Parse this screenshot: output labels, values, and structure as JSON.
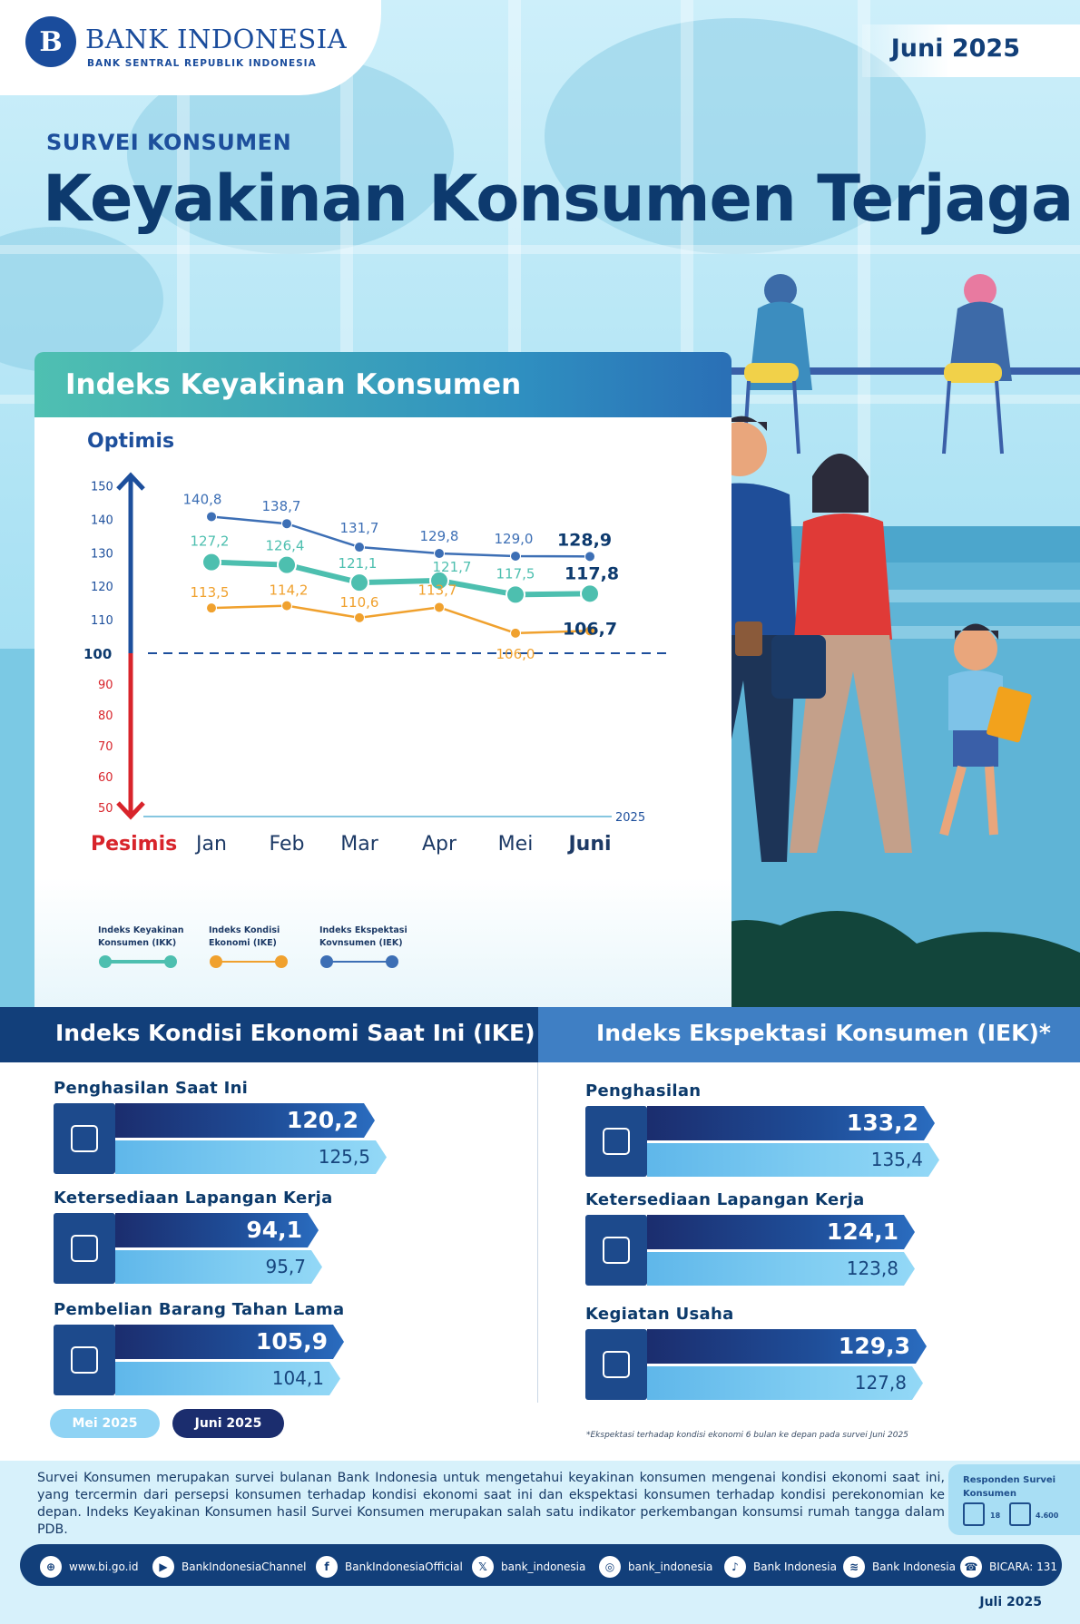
{
  "header": {
    "logo_emblem": "B",
    "logo_name": "BANK INDONESIA",
    "logo_subtitle": "BANK SENTRAL REPUBLIK INDONESIA",
    "period": "Juni 2025",
    "eyebrow": "SURVEI KONSUMEN",
    "title": "Keyakinan Konsumen Terjaga"
  },
  "chart_card": {
    "title": "Indeks Keyakinan Konsumen",
    "label_top": "Optimis",
    "label_bottom": "Pesimis",
    "year_label": "2025",
    "baseline_label": "100"
  },
  "chart_data": {
    "type": "line",
    "title": "Indeks Keyakinan Konsumen",
    "categories": [
      "Jan",
      "Feb",
      "Mar",
      "Apr",
      "Mei",
      "Juni"
    ],
    "y_ticks_optimis": [
      150,
      140,
      130,
      120,
      110
    ],
    "y_ticks_pesimis": [
      90,
      80,
      70,
      60,
      50
    ],
    "baseline": 100,
    "series": [
      {
        "name": "Indeks Ekspektasi Kovnsumen (IEK)",
        "legend_line1": "Indeks Ekspektasi",
        "legend_line2": "Kovnsumen (IEK)",
        "color": "#3d6fb5",
        "values": [
          140.8,
          138.7,
          131.7,
          129.8,
          129.0,
          128.9
        ],
        "labels": [
          "140,8",
          "138,7",
          "131,7",
          "129,8",
          "129,0",
          "128,9"
        ]
      },
      {
        "name": "Indeks Keyakinan Konsumen (IKK)",
        "legend_line1": "Indeks Keyakinan",
        "legend_line2": "Konsumen (IKK)",
        "color": "#4dbfaf",
        "values": [
          127.2,
          126.4,
          121.1,
          121.7,
          117.5,
          117.8
        ],
        "labels": [
          "127,2",
          "126,4",
          "121,1",
          "121,7",
          "117,5",
          "117,8"
        ]
      },
      {
        "name": "Indeks Kondisi Ekonomi (IKE)",
        "legend_line1": "Indeks Kondisi",
        "legend_line2": "Ekonomi (IKE)",
        "color": "#f0a12e",
        "values": [
          113.5,
          114.2,
          110.6,
          113.7,
          106.0,
          106.7
        ],
        "labels": [
          "113,5",
          "114,2",
          "110,6",
          "113,7",
          "106,0",
          "106,7"
        ]
      }
    ],
    "legend_order": [
      1,
      2,
      0
    ]
  },
  "panels": {
    "ike_title": "Indeks Kondisi Ekonomi Saat Ini (IKE)",
    "iek_title": "Indeks Ekspektasi Konsumen (IEK)*",
    "ike": [
      {
        "label": "Penghasilan Saat Ini",
        "icon": "money-hand-icon",
        "juni": 120.2,
        "juni_label": "120,2",
        "mei": 125.5,
        "mei_label": "125,5"
      },
      {
        "label": "Ketersediaan Lapangan Kerja",
        "icon": "job-document-icon",
        "juni": 94.1,
        "juni_label": "94,1",
        "mei": 95.7,
        "mei_label": "95,7"
      },
      {
        "label": "Pembelian Barang Tahan Lama",
        "icon": "refrigerator-icon",
        "juni": 105.9,
        "juni_label": "105,9",
        "mei": 104.1,
        "mei_label": "104,1"
      }
    ],
    "iek": [
      {
        "label": "Penghasilan",
        "icon": "money-bag-hand-icon",
        "juni": 133.2,
        "juni_label": "133,2",
        "mei": 135.4,
        "mei_label": "135,4"
      },
      {
        "label": "Ketersediaan Lapangan Kerja",
        "icon": "briefcase-hands-icon",
        "juni": 124.1,
        "juni_label": "124,1",
        "mei": 123.8,
        "mei_label": "123,8"
      },
      {
        "label": "Kegiatan Usaha",
        "icon": "shop-icon",
        "juni": 129.3,
        "juni_label": "129,3",
        "mei": 127.8,
        "mei_label": "127,8"
      }
    ],
    "legend_mei": "Mei 2025",
    "legend_juni": "Juni 2025",
    "colors": {
      "juni": "#1b2d6e",
      "mei": "#8fd3f4"
    },
    "footnote": "*Ekspektasi terhadap kondisi ekonomi 6 bulan ke depan pada survei Juni 2025"
  },
  "footer": {
    "description": "Survei Konsumen merupakan survei bulanan Bank Indonesia untuk mengetahui keyakinan konsumen mengenai kondisi ekonomi saat ini, yang tercermin dari persepsi konsumen terhadap kondisi ekonomi saat ini dan ekspektasi konsumen terhadap kondisi perekonomian ke depan. Indeks Keyakinan Konsumen hasil Survei Konsumen merupakan salah satu indikator perkembangan konsumsi rumah tangga dalam PDB.",
    "respondents_title": "Responden Survei Konsumen",
    "respondents_cities": "18",
    "respondents_households": "4.600",
    "social": [
      {
        "icon": "globe-icon",
        "glyph": "⊕",
        "text": "www.bi.go.id"
      },
      {
        "icon": "youtube-icon",
        "glyph": "▶",
        "text": "BankIndonesiaChannel"
      },
      {
        "icon": "facebook-icon",
        "glyph": "f",
        "text": "BankIndonesiaOfficial"
      },
      {
        "icon": "x-icon",
        "glyph": "𝕏",
        "text": "bank_indonesia"
      },
      {
        "icon": "instagram-icon",
        "glyph": "◎",
        "text": "bank_indonesia"
      },
      {
        "icon": "tiktok-icon",
        "glyph": "♪",
        "text": "Bank Indonesia"
      },
      {
        "icon": "spotify-icon",
        "glyph": "≋",
        "text": "Bank Indonesia"
      },
      {
        "icon": "bicara-icon",
        "glyph": "☎",
        "text": "BICARA: 131"
      }
    ],
    "release": "Juli 2025"
  }
}
